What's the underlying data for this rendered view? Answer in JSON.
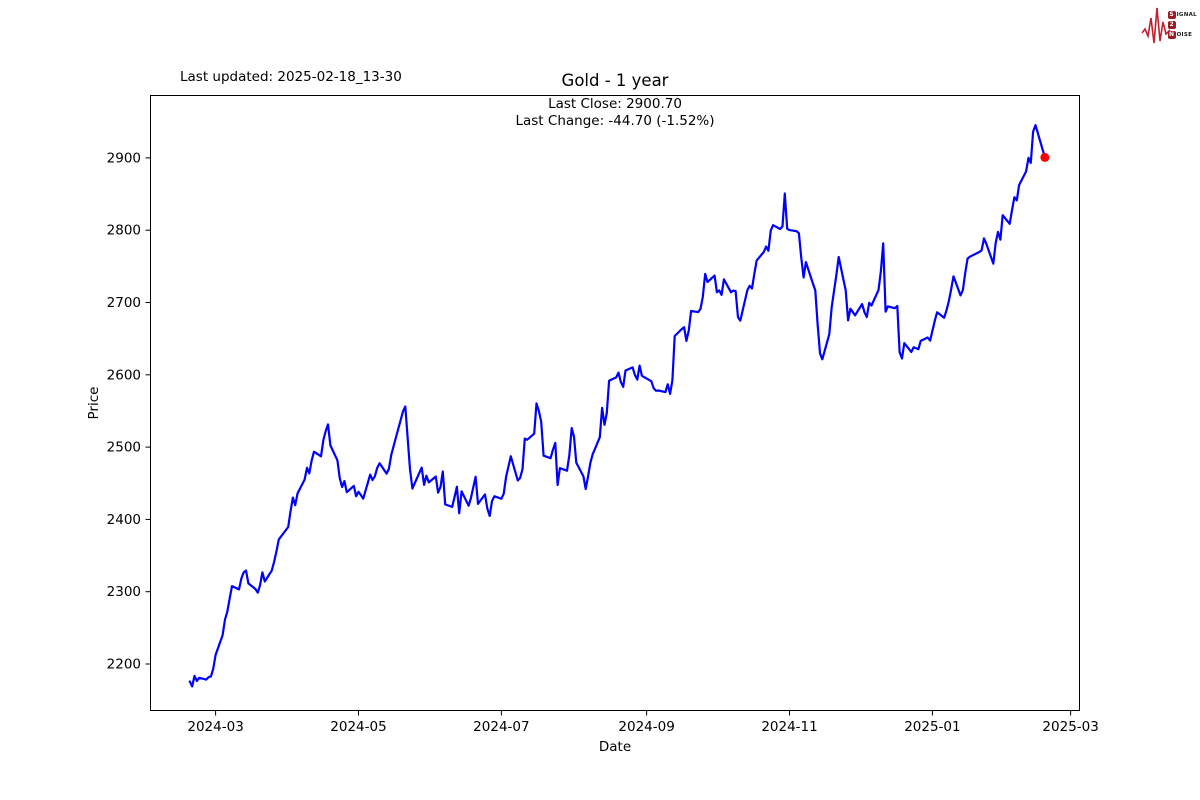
{
  "header": {
    "last_updated": "Last updated: 2025-02-18_13-30",
    "logo": {
      "word1_initial": "S",
      "word1_rest": "IGNAL",
      "word2": "2",
      "word3_initial": "N",
      "word3_rest": "OISE",
      "wave_color": "#C31F2E",
      "badge_color": "#9B1B22"
    }
  },
  "chart_data": {
    "type": "line",
    "title": "Gold - 1 year",
    "annotation_line1": "Last Close: 2900.70",
    "annotation_line2": "Last Change: -44.70 (-1.52%)",
    "xlabel": "Date",
    "ylabel": "Price",
    "last_close": 2900.7,
    "last_change": -44.7,
    "last_change_pct": -1.52,
    "line_color": "#0000FF",
    "marker_color": "#FF0000",
    "grid": false,
    "legend": "none",
    "ylim": [
      2135,
      2987
    ],
    "xlim": [
      "2024-02-02",
      "2025-03-05"
    ],
    "y_ticks": [
      2200,
      2300,
      2400,
      2500,
      2600,
      2700,
      2800,
      2900
    ],
    "x_ticks": [
      {
        "label": "2024-03",
        "date": "2024-03-01"
      },
      {
        "label": "2024-05",
        "date": "2024-05-01"
      },
      {
        "label": "2024-07",
        "date": "2024-07-01"
      },
      {
        "label": "2024-09",
        "date": "2024-09-01"
      },
      {
        "label": "2024-11",
        "date": "2024-11-01"
      },
      {
        "label": "2025-01",
        "date": "2025-01-01"
      },
      {
        "label": "2025-03",
        "date": "2025-03-01"
      }
    ],
    "series": [
      {
        "name": "Gold",
        "dates": [
          "2024-02-19",
          "2024-02-20",
          "2024-02-21",
          "2024-02-22",
          "2024-02-23",
          "2024-02-26",
          "2024-02-27",
          "2024-02-28",
          "2024-02-29",
          "2024-03-01",
          "2024-03-04",
          "2024-03-05",
          "2024-03-06",
          "2024-03-07",
          "2024-03-08",
          "2024-03-11",
          "2024-03-12",
          "2024-03-13",
          "2024-03-14",
          "2024-03-15",
          "2024-03-18",
          "2024-03-19",
          "2024-03-20",
          "2024-03-21",
          "2024-03-22",
          "2024-03-25",
          "2024-03-26",
          "2024-03-27",
          "2024-03-28",
          "2024-04-01",
          "2024-04-02",
          "2024-04-03",
          "2024-04-04",
          "2024-04-05",
          "2024-04-08",
          "2024-04-09",
          "2024-04-10",
          "2024-04-11",
          "2024-04-12",
          "2024-04-15",
          "2024-04-16",
          "2024-04-17",
          "2024-04-18",
          "2024-04-19",
          "2024-04-22",
          "2024-04-23",
          "2024-04-24",
          "2024-04-25",
          "2024-04-26",
          "2024-04-29",
          "2024-04-30",
          "2024-05-01",
          "2024-05-02",
          "2024-05-03",
          "2024-05-06",
          "2024-05-07",
          "2024-05-08",
          "2024-05-09",
          "2024-05-10",
          "2024-05-13",
          "2024-05-14",
          "2024-05-15",
          "2024-05-16",
          "2024-05-17",
          "2024-05-20",
          "2024-05-21",
          "2024-05-22",
          "2024-05-23",
          "2024-05-24",
          "2024-05-28",
          "2024-05-29",
          "2024-05-30",
          "2024-05-31",
          "2024-06-03",
          "2024-06-04",
          "2024-06-05",
          "2024-06-06",
          "2024-06-07",
          "2024-06-10",
          "2024-06-11",
          "2024-06-12",
          "2024-06-13",
          "2024-06-14",
          "2024-06-17",
          "2024-06-18",
          "2024-06-20",
          "2024-06-21",
          "2024-06-24",
          "2024-06-25",
          "2024-06-26",
          "2024-06-27",
          "2024-06-28",
          "2024-07-01",
          "2024-07-02",
          "2024-07-03",
          "2024-07-05",
          "2024-07-08",
          "2024-07-09",
          "2024-07-10",
          "2024-07-11",
          "2024-07-12",
          "2024-07-15",
          "2024-07-16",
          "2024-07-17",
          "2024-07-18",
          "2024-07-19",
          "2024-07-22",
          "2024-07-23",
          "2024-07-24",
          "2024-07-25",
          "2024-07-26",
          "2024-07-29",
          "2024-07-30",
          "2024-07-31",
          "2024-08-01",
          "2024-08-02",
          "2024-08-05",
          "2024-08-06",
          "2024-08-07",
          "2024-08-08",
          "2024-08-09",
          "2024-08-12",
          "2024-08-13",
          "2024-08-14",
          "2024-08-15",
          "2024-08-16",
          "2024-08-19",
          "2024-08-20",
          "2024-08-21",
          "2024-08-22",
          "2024-08-23",
          "2024-08-26",
          "2024-08-27",
          "2024-08-28",
          "2024-08-29",
          "2024-08-30",
          "2024-09-03",
          "2024-09-04",
          "2024-09-05",
          "2024-09-06",
          "2024-09-09",
          "2024-09-10",
          "2024-09-11",
          "2024-09-12",
          "2024-09-13",
          "2024-09-16",
          "2024-09-17",
          "2024-09-18",
          "2024-09-19",
          "2024-09-20",
          "2024-09-23",
          "2024-09-24",
          "2024-09-25",
          "2024-09-26",
          "2024-09-27",
          "2024-09-30",
          "2024-10-01",
          "2024-10-02",
          "2024-10-03",
          "2024-10-04",
          "2024-10-07",
          "2024-10-08",
          "2024-10-09",
          "2024-10-10",
          "2024-10-11",
          "2024-10-14",
          "2024-10-15",
          "2024-10-16",
          "2024-10-17",
          "2024-10-18",
          "2024-10-21",
          "2024-10-22",
          "2024-10-23",
          "2024-10-24",
          "2024-10-25",
          "2024-10-28",
          "2024-10-29",
          "2024-10-30",
          "2024-10-31",
          "2024-11-01",
          "2024-11-04",
          "2024-11-05",
          "2024-11-06",
          "2024-11-07",
          "2024-11-08",
          "2024-11-11",
          "2024-11-12",
          "2024-11-13",
          "2024-11-14",
          "2024-11-15",
          "2024-11-18",
          "2024-11-19",
          "2024-11-20",
          "2024-11-21",
          "2024-11-22",
          "2024-11-25",
          "2024-11-26",
          "2024-11-27",
          "2024-11-29",
          "2024-12-02",
          "2024-12-03",
          "2024-12-04",
          "2024-12-05",
          "2024-12-06",
          "2024-12-09",
          "2024-12-10",
          "2024-12-11",
          "2024-12-12",
          "2024-12-13",
          "2024-12-16",
          "2024-12-17",
          "2024-12-18",
          "2024-12-19",
          "2024-12-20",
          "2024-12-23",
          "2024-12-24",
          "2024-12-26",
          "2024-12-27",
          "2024-12-30",
          "2024-12-31",
          "2025-01-02",
          "2025-01-03",
          "2025-01-06",
          "2025-01-07",
          "2025-01-08",
          "2025-01-09",
          "2025-01-10",
          "2025-01-13",
          "2025-01-14",
          "2025-01-15",
          "2025-01-16",
          "2025-01-17",
          "2025-01-21",
          "2025-01-22",
          "2025-01-23",
          "2025-01-24",
          "2025-01-27",
          "2025-01-28",
          "2025-01-29",
          "2025-01-30",
          "2025-01-31",
          "2025-02-03",
          "2025-02-04",
          "2025-02-05",
          "2025-02-06",
          "2025-02-07",
          "2025-02-10",
          "2025-02-11",
          "2025-02-12",
          "2025-02-13",
          "2025-02-14",
          "2025-02-18"
        ],
        "prices": [
          2175.8,
          2169.0,
          2183.5,
          2176.5,
          2180.9,
          2178.4,
          2181.7,
          2182.9,
          2193.1,
          2212.6,
          2239.8,
          2261.5,
          2272.4,
          2290.1,
          2307.8,
          2303.2,
          2318.4,
          2326.7,
          2329.3,
          2311.5,
          2303.8,
          2298.6,
          2309.2,
          2326.9,
          2314.1,
          2329.5,
          2341.8,
          2356.2,
          2372.4,
          2389.5,
          2411.8,
          2430.2,
          2419.6,
          2436.3,
          2455.1,
          2471.4,
          2463.8,
          2481.2,
          2493.6,
          2487.3,
          2509.8,
          2522.1,
          2531.4,
          2502.3,
          2481.7,
          2457.2,
          2444.8,
          2453.1,
          2437.6,
          2446.3,
          2432.1,
          2438.2,
          2433.7,
          2428.6,
          2461.9,
          2454.3,
          2459.8,
          2471.2,
          2477.6,
          2463.4,
          2469.8,
          2489.5,
          2501.2,
          2513.8,
          2549.3,
          2556.1,
          2511.7,
          2469.4,
          2442.8,
          2471.6,
          2447.9,
          2460.5,
          2451.2,
          2459.3,
          2437.1,
          2444.9,
          2466.2,
          2420.8,
          2417.3,
          2430.6,
          2445.2,
          2408.4,
          2438.7,
          2418.9,
          2429.3,
          2459.1,
          2421.4,
          2434.6,
          2415.2,
          2404.8,
          2425.3,
          2431.9,
          2428.7,
          2435.4,
          2458.9,
          2487.3,
          2453.8,
          2457.2,
          2469.5,
          2511.8,
          2510.3,
          2518.6,
          2560.4,
          2549.7,
          2535.2,
          2488.1,
          2484.6,
          2496.3,
          2505.8,
          2447.6,
          2470.9,
          2467.3,
          2488.2,
          2526.4,
          2514.2,
          2478.3,
          2459.6,
          2442.1,
          2459.8,
          2478.4,
          2490.2,
          2513.6,
          2554.3,
          2530.8,
          2547.2,
          2591.8,
          2596.4,
          2603.1,
          2589.7,
          2583.2,
          2605.9,
          2610.3,
          2599.8,
          2593.4,
          2612.7,
          2598.6,
          2591.2,
          2581.4,
          2577.9,
          2578.3,
          2576.1,
          2586.8,
          2573.6,
          2592.4,
          2653.7,
          2663.2,
          2665.8,
          2646.9,
          2661.4,
          2688.3,
          2686.7,
          2691.2,
          2707.8,
          2739.6,
          2728.4,
          2737.2,
          2714.3,
          2716.8,
          2710.6,
          2731.9,
          2714.2,
          2716.4,
          2715.8,
          2679.6,
          2674.9,
          2717.3,
          2723.1,
          2719.4,
          2740.2,
          2758.3,
          2769.8,
          2777.4,
          2771.6,
          2799.8,
          2806.9,
          2801.7,
          2805.4,
          2850.8,
          2801.9,
          2800.2,
          2798.6,
          2795.9,
          2762.8,
          2734.6,
          2755.9,
          2726.3,
          2716.8,
          2670.3,
          2629.8,
          2621.4,
          2656.2,
          2693.5,
          2715.8,
          2738.4,
          2762.9,
          2716.7,
          2675.2,
          2691.4,
          2682.3,
          2697.8,
          2686.5,
          2679.9,
          2699.6,
          2695.8,
          2717.2,
          2743.6,
          2781.9,
          2687.3,
          2694.6,
          2692.1,
          2695.2,
          2631.4,
          2622.6,
          2643.8,
          2631.5,
          2638.2,
          2635.4,
          2646.9,
          2651.6,
          2647.3,
          2674.8,
          2686.5,
          2678.9,
          2689.2,
          2701.6,
          2718.4,
          2736.2,
          2709.8,
          2717.3,
          2740.6,
          2760.9,
          2763.4,
          2769.8,
          2772.1,
          2788.6,
          2781.3,
          2753.8,
          2782.4,
          2797.6,
          2786.9,
          2820.8,
          2808.9,
          2828.3,
          2845.7,
          2841.2,
          2862.4,
          2881.3,
          2900.2,
          2893.1,
          2936.3,
          2945.4,
          2900.7
        ]
      }
    ]
  }
}
